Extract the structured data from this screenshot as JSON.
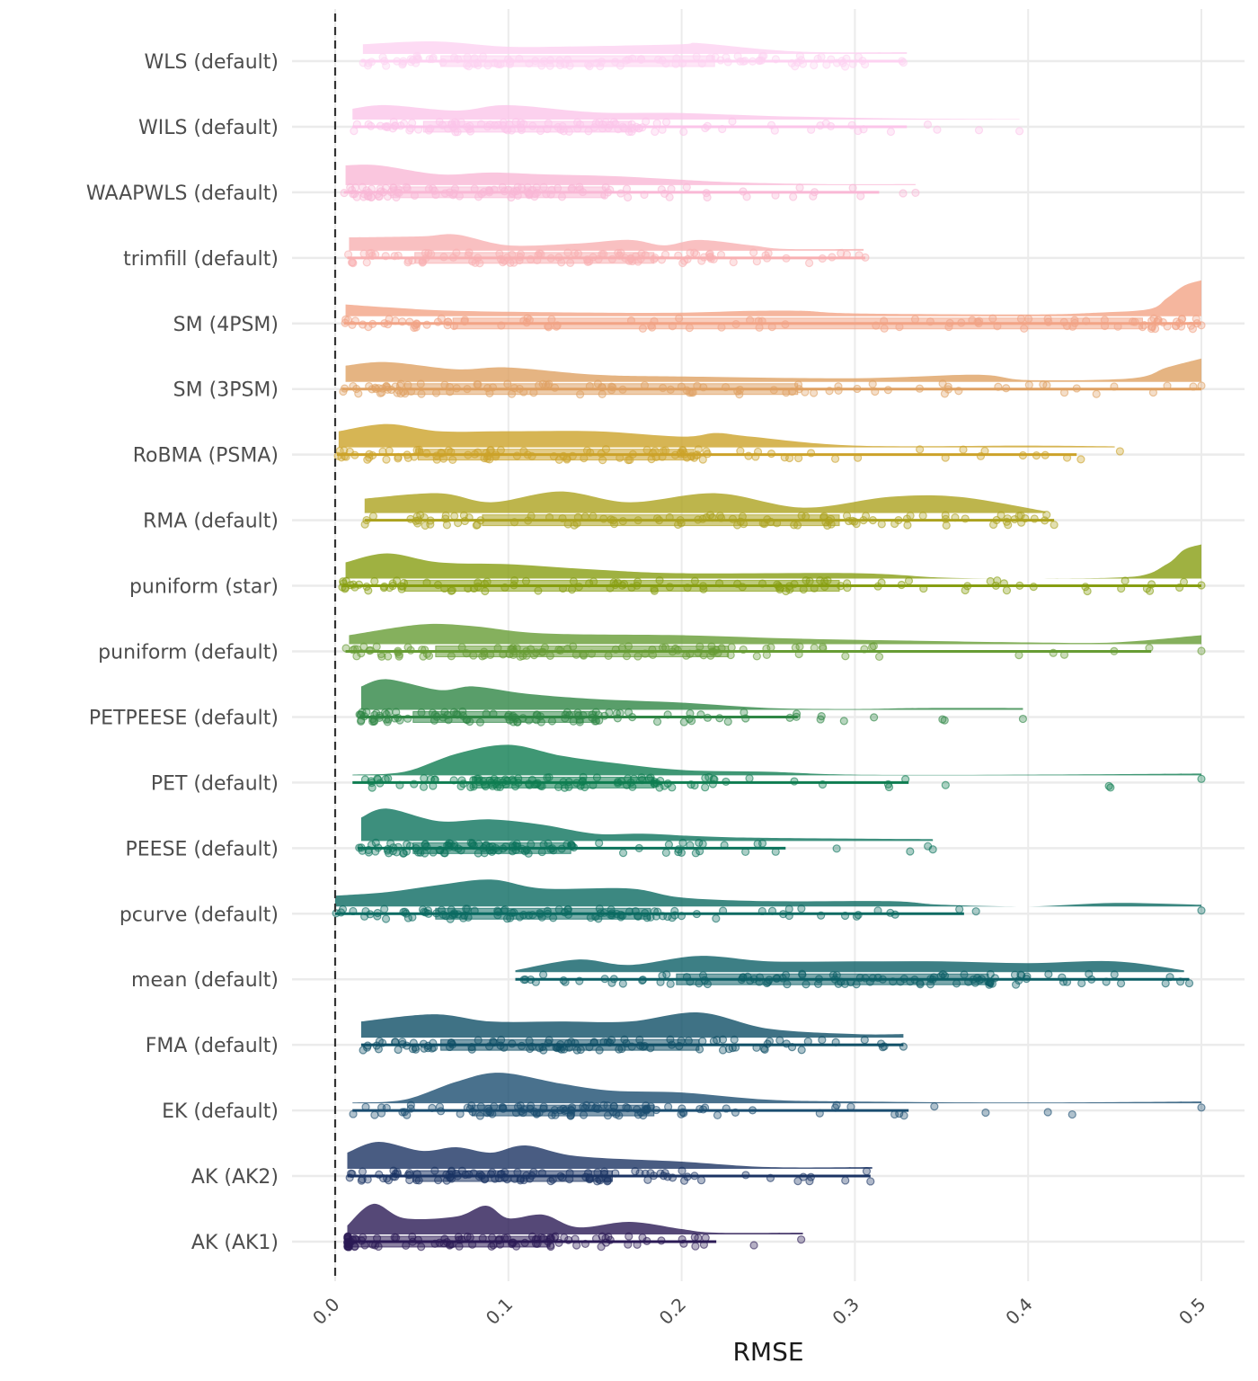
{
  "chart_data": {
    "type": "raincloud",
    "title": "",
    "xlabel": "RMSE",
    "ylabel": "",
    "xlim": [
      0,
      0.5
    ],
    "x_ticks": [
      "0.0",
      "0.1",
      "0.2",
      "0.3",
      "0.4",
      "0.5"
    ],
    "grid": true,
    "reference_line": {
      "x": 0,
      "style": "dashed"
    },
    "legend": "none",
    "series": [
      {
        "name": "WLS (default)",
        "color": "#fdd2f1",
        "min": 0.015,
        "q1": 0.061,
        "q3": 0.219,
        "whisker_max": 0.328,
        "max": 0.328,
        "density": [
          [
            0.016,
            0.27
          ],
          [
            0.057,
            0.35
          ],
          [
            0.1,
            0.2
          ],
          [
            0.15,
            0.22
          ],
          [
            0.2,
            0.27
          ],
          [
            0.21,
            0.3
          ],
          [
            0.25,
            0.12
          ],
          [
            0.28,
            0.05
          ],
          [
            0.33,
            0.05
          ]
        ]
      },
      {
        "name": "WILS (default)",
        "color": "#fbc5ea",
        "min": 0.01,
        "q1": 0.051,
        "q3": 0.171,
        "whisker_max": 0.33,
        "max": 0.395,
        "density": [
          [
            0.01,
            0.3
          ],
          [
            0.03,
            0.4
          ],
          [
            0.07,
            0.25
          ],
          [
            0.1,
            0.4
          ],
          [
            0.15,
            0.2
          ],
          [
            0.2,
            0.18
          ],
          [
            0.25,
            0.1
          ],
          [
            0.3,
            0.05
          ],
          [
            0.35,
            0.02
          ],
          [
            0.395,
            0.01
          ]
        ]
      },
      {
        "name": "WAAPWLS (default)",
        "color": "#f9b8d6",
        "min": 0.005,
        "q1": 0.032,
        "q3": 0.156,
        "whisker_max": 0.314,
        "max": 0.335,
        "density": [
          [
            0.006,
            0.55
          ],
          [
            0.025,
            0.55
          ],
          [
            0.06,
            0.3
          ],
          [
            0.09,
            0.35
          ],
          [
            0.12,
            0.3
          ],
          [
            0.16,
            0.25
          ],
          [
            0.2,
            0.15
          ],
          [
            0.23,
            0.08
          ],
          [
            0.28,
            0.03
          ],
          [
            0.335,
            0.03
          ]
        ]
      },
      {
        "name": "trimfill (default)",
        "color": "#f8b0b2",
        "min": 0.007,
        "q1": 0.046,
        "q3": 0.184,
        "whisker_max": 0.306,
        "max": 0.306,
        "density": [
          [
            0.008,
            0.37
          ],
          [
            0.05,
            0.4
          ],
          [
            0.07,
            0.45
          ],
          [
            0.1,
            0.15
          ],
          [
            0.14,
            0.2
          ],
          [
            0.17,
            0.3
          ],
          [
            0.19,
            0.15
          ],
          [
            0.21,
            0.3
          ],
          [
            0.24,
            0.15
          ],
          [
            0.26,
            0.05
          ],
          [
            0.305,
            0.05
          ]
        ]
      },
      {
        "name": "SM (4PSM)",
        "color": "#f2a486",
        "min": 0.005,
        "q1": 0.068,
        "q3": 0.466,
        "whisker_max": 0.5,
        "max": 0.5,
        "density": [
          [
            0.006,
            0.33
          ],
          [
            0.03,
            0.25
          ],
          [
            0.07,
            0.15
          ],
          [
            0.15,
            0.1
          ],
          [
            0.2,
            0.1
          ],
          [
            0.24,
            0.15
          ],
          [
            0.27,
            0.15
          ],
          [
            0.3,
            0.08
          ],
          [
            0.4,
            0.05
          ],
          [
            0.44,
            0.1
          ],
          [
            0.47,
            0.2
          ],
          [
            0.48,
            0.5
          ],
          [
            0.49,
            0.85
          ],
          [
            0.5,
            1.0
          ]
        ]
      },
      {
        "name": "SM (3PSM)",
        "color": "#dfa163",
        "min": 0.004,
        "q1": 0.04,
        "q3": 0.267,
        "whisker_max": 0.5,
        "max": 0.5,
        "density": [
          [
            0.006,
            0.45
          ],
          [
            0.03,
            0.55
          ],
          [
            0.07,
            0.35
          ],
          [
            0.1,
            0.4
          ],
          [
            0.15,
            0.2
          ],
          [
            0.2,
            0.15
          ],
          [
            0.3,
            0.1
          ],
          [
            0.37,
            0.2
          ],
          [
            0.4,
            0.05
          ],
          [
            0.46,
            0.1
          ],
          [
            0.48,
            0.4
          ],
          [
            0.5,
            0.65
          ]
        ]
      },
      {
        "name": "RoBMA (PSMA)",
        "color": "#cca229",
        "min": 0.001,
        "q1": 0.048,
        "q3": 0.207,
        "whisker_max": 0.428,
        "max": 0.453,
        "density": [
          [
            0.002,
            0.45
          ],
          [
            0.03,
            0.65
          ],
          [
            0.06,
            0.45
          ],
          [
            0.1,
            0.45
          ],
          [
            0.15,
            0.45
          ],
          [
            0.2,
            0.3
          ],
          [
            0.22,
            0.4
          ],
          [
            0.24,
            0.3
          ],
          [
            0.3,
            0.05
          ],
          [
            0.4,
            0.05
          ],
          [
            0.45,
            0.03
          ]
        ]
      },
      {
        "name": "RMA (default)",
        "color": "#aca21f",
        "min": 0.017,
        "q1": 0.085,
        "q3": 0.291,
        "whisker_max": 0.415,
        "max": 0.415,
        "density": [
          [
            0.017,
            0.4
          ],
          [
            0.06,
            0.55
          ],
          [
            0.09,
            0.3
          ],
          [
            0.13,
            0.6
          ],
          [
            0.17,
            0.3
          ],
          [
            0.22,
            0.55
          ],
          [
            0.27,
            0.15
          ],
          [
            0.32,
            0.45
          ],
          [
            0.36,
            0.45
          ],
          [
            0.41,
            0.05
          ]
        ]
      },
      {
        "name": "puniform (star)",
        "color": "#879e11",
        "min": 0.004,
        "q1": 0.04,
        "q3": 0.291,
        "whisker_max": 0.5,
        "max": 0.5,
        "density": [
          [
            0.006,
            0.45
          ],
          [
            0.03,
            0.7
          ],
          [
            0.06,
            0.45
          ],
          [
            0.1,
            0.4
          ],
          [
            0.15,
            0.25
          ],
          [
            0.2,
            0.15
          ],
          [
            0.3,
            0.15
          ],
          [
            0.35,
            0.03
          ],
          [
            0.4,
            0.0
          ],
          [
            0.46,
            0.05
          ],
          [
            0.48,
            0.4
          ],
          [
            0.49,
            0.8
          ],
          [
            0.5,
            0.95
          ]
        ]
      },
      {
        "name": "puniform (default)",
        "color": "#679c35",
        "min": 0.006,
        "q1": 0.058,
        "q3": 0.227,
        "whisker_max": 0.471,
        "max": 0.5,
        "density": [
          [
            0.008,
            0.25
          ],
          [
            0.05,
            0.55
          ],
          [
            0.08,
            0.5
          ],
          [
            0.12,
            0.3
          ],
          [
            0.2,
            0.25
          ],
          [
            0.27,
            0.15
          ],
          [
            0.33,
            0.1
          ],
          [
            0.4,
            0.05
          ],
          [
            0.45,
            0.05
          ],
          [
            0.5,
            0.25
          ]
        ]
      },
      {
        "name": "PETPEESE (default)",
        "color": "#2f8645",
        "min": 0.014,
        "q1": 0.045,
        "q3": 0.151,
        "whisker_max": 0.267,
        "max": 0.397,
        "density": [
          [
            0.015,
            0.65
          ],
          [
            0.03,
            0.85
          ],
          [
            0.06,
            0.55
          ],
          [
            0.08,
            0.65
          ],
          [
            0.11,
            0.45
          ],
          [
            0.15,
            0.3
          ],
          [
            0.2,
            0.2
          ],
          [
            0.25,
            0.05
          ],
          [
            0.3,
            0.02
          ],
          [
            0.34,
            0.05
          ],
          [
            0.397,
            0.05
          ]
        ]
      },
      {
        "name": "PET (default)",
        "color": "#0f7d51",
        "min": 0.01,
        "q1": 0.079,
        "q3": 0.184,
        "whisker_max": 0.331,
        "max": 0.5,
        "density": [
          [
            0.01,
            0.02
          ],
          [
            0.04,
            0.1
          ],
          [
            0.07,
            0.6
          ],
          [
            0.1,
            0.85
          ],
          [
            0.13,
            0.55
          ],
          [
            0.16,
            0.35
          ],
          [
            0.2,
            0.15
          ],
          [
            0.25,
            0.1
          ],
          [
            0.3,
            0.02
          ],
          [
            0.4,
            0.02
          ],
          [
            0.5,
            0.05
          ]
        ]
      },
      {
        "name": "PEESE (default)",
        "color": "#0c735c",
        "min": 0.013,
        "q1": 0.045,
        "q3": 0.136,
        "whisker_max": 0.26,
        "max": 0.345,
        "density": [
          [
            0.015,
            0.65
          ],
          [
            0.03,
            0.9
          ],
          [
            0.06,
            0.55
          ],
          [
            0.09,
            0.6
          ],
          [
            0.12,
            0.45
          ],
          [
            0.15,
            0.2
          ],
          [
            0.18,
            0.2
          ],
          [
            0.23,
            0.1
          ],
          [
            0.345,
            0.05
          ]
        ]
      },
      {
        "name": "pcurve (default)",
        "color": "#0b6a62",
        "min": 0.0,
        "q1": 0.058,
        "q3": 0.182,
        "whisker_max": 0.363,
        "max": 0.5,
        "density": [
          [
            0.0,
            0.3
          ],
          [
            0.03,
            0.4
          ],
          [
            0.06,
            0.6
          ],
          [
            0.09,
            0.75
          ],
          [
            0.12,
            0.5
          ],
          [
            0.17,
            0.5
          ],
          [
            0.2,
            0.25
          ],
          [
            0.25,
            0.15
          ],
          [
            0.32,
            0.15
          ],
          [
            0.35,
            0.05
          ],
          [
            0.4,
            0.0
          ],
          [
            0.45,
            0.1
          ],
          [
            0.5,
            0.05
          ]
        ]
      },
      {
        "name": "mean (default)",
        "color": "#0c5f66",
        "min": 0.104,
        "q1": 0.197,
        "q3": 0.377,
        "whisker_max": 0.493,
        "max": 0.493,
        "density": [
          [
            0.104,
            0.05
          ],
          [
            0.14,
            0.35
          ],
          [
            0.17,
            0.2
          ],
          [
            0.21,
            0.45
          ],
          [
            0.25,
            0.3
          ],
          [
            0.3,
            0.3
          ],
          [
            0.35,
            0.3
          ],
          [
            0.4,
            0.25
          ],
          [
            0.45,
            0.3
          ],
          [
            0.49,
            0.05
          ]
        ]
      },
      {
        "name": "FMA (default)",
        "color": "#0f4f66",
        "min": 0.015,
        "q1": 0.061,
        "q3": 0.21,
        "whisker_max": 0.328,
        "max": 0.328,
        "density": [
          [
            0.015,
            0.45
          ],
          [
            0.057,
            0.65
          ],
          [
            0.09,
            0.45
          ],
          [
            0.13,
            0.45
          ],
          [
            0.17,
            0.45
          ],
          [
            0.21,
            0.7
          ],
          [
            0.25,
            0.25
          ],
          [
            0.3,
            0.1
          ],
          [
            0.328,
            0.1
          ]
        ]
      },
      {
        "name": "EK (default)",
        "color": "#1b4d70",
        "min": 0.01,
        "q1": 0.079,
        "q3": 0.184,
        "whisker_max": 0.331,
        "max": 0.5,
        "density": [
          [
            0.01,
            0.02
          ],
          [
            0.04,
            0.1
          ],
          [
            0.07,
            0.6
          ],
          [
            0.095,
            0.85
          ],
          [
            0.13,
            0.55
          ],
          [
            0.16,
            0.35
          ],
          [
            0.2,
            0.3
          ],
          [
            0.25,
            0.1
          ],
          [
            0.3,
            0.05
          ],
          [
            0.4,
            0.02
          ],
          [
            0.5,
            0.05
          ]
        ]
      },
      {
        "name": "AK (AK2)",
        "color": "#1b3363",
        "min": 0.007,
        "q1": 0.045,
        "q3": 0.16,
        "whisker_max": 0.309,
        "max": 0.309,
        "density": [
          [
            0.007,
            0.45
          ],
          [
            0.025,
            0.75
          ],
          [
            0.05,
            0.5
          ],
          [
            0.07,
            0.6
          ],
          [
            0.09,
            0.45
          ],
          [
            0.11,
            0.65
          ],
          [
            0.14,
            0.35
          ],
          [
            0.2,
            0.2
          ],
          [
            0.25,
            0.05
          ],
          [
            0.31,
            0.05
          ]
        ]
      },
      {
        "name": "AK (AK1)",
        "color": "#2b1a55",
        "min": 0.007,
        "q1": 0.008,
        "q3": 0.124,
        "whisker_max": 0.22,
        "max": 0.269,
        "density": [
          [
            0.007,
            0.25
          ],
          [
            0.022,
            0.85
          ],
          [
            0.04,
            0.45
          ],
          [
            0.07,
            0.5
          ],
          [
            0.087,
            0.8
          ],
          [
            0.1,
            0.45
          ],
          [
            0.12,
            0.55
          ],
          [
            0.14,
            0.2
          ],
          [
            0.17,
            0.35
          ],
          [
            0.2,
            0.15
          ],
          [
            0.22,
            0.05
          ],
          [
            0.27,
            0.05
          ]
        ]
      }
    ]
  }
}
